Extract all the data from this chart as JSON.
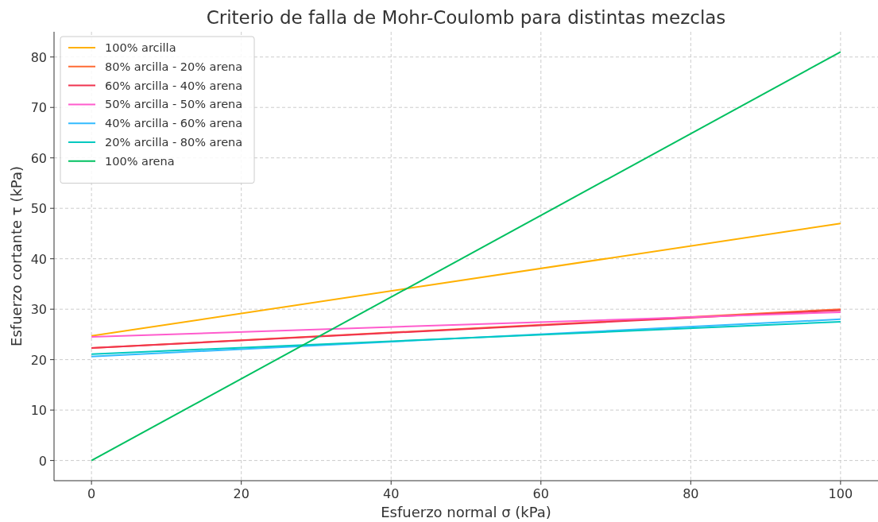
{
  "chart_data": {
    "type": "line",
    "title": "Criterio de falla de Mohr-Coulomb para distintas mezclas",
    "xlabel": "Esfuerzo normal σ (kPa)",
    "ylabel": "Esfuerzo cortante τ (kPa)",
    "x": [
      0,
      100
    ],
    "series": [
      {
        "name": "100% arcilla",
        "color": "#ffb000",
        "values": [
          24.7,
          47.0
        ]
      },
      {
        "name": "80% arcilla - 20% arena",
        "color": "#ff6b35",
        "values": [
          22.3,
          30.0
        ]
      },
      {
        "name": "60% arcilla - 40% arena",
        "color": "#f0334f",
        "values": [
          22.3,
          29.8
        ]
      },
      {
        "name": "50% arcilla - 50% arena",
        "color": "#ff5ccd",
        "values": [
          24.5,
          29.4
        ]
      },
      {
        "name": "40% arcilla - 60% arena",
        "color": "#33bbff",
        "values": [
          20.6,
          28.0
        ]
      },
      {
        "name": "20% arcilla - 80% arena",
        "color": "#00c9c0",
        "values": [
          21.1,
          27.5
        ]
      },
      {
        "name": "100% arena",
        "color": "#00c060",
        "values": [
          0,
          81.0
        ]
      }
    ],
    "xlim": [
      -5,
      105
    ],
    "ylim": [
      -4,
      85
    ],
    "xticks": [
      0,
      20,
      40,
      60,
      80,
      100
    ],
    "yticks": [
      0,
      10,
      20,
      30,
      40,
      50,
      60,
      70,
      80
    ],
    "grid": true,
    "legend": "top left",
    "marker": "none",
    "line_style": "solid"
  }
}
